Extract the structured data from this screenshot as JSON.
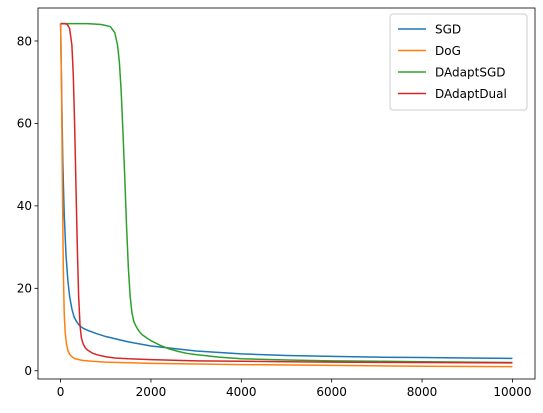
{
  "chart_data": {
    "type": "line",
    "title": "",
    "xlabel": "",
    "ylabel": "",
    "xlim": [
      -500,
      10500
    ],
    "ylim": [
      -2,
      88
    ],
    "xticks": [
      0,
      2000,
      4000,
      6000,
      8000,
      10000
    ],
    "yticks": [
      0,
      20,
      40,
      60,
      80
    ],
    "grid": false,
    "legend_position": "top-right",
    "series": [
      {
        "name": "SGD",
        "color": "#1f77b4",
        "x": [
          0,
          20,
          50,
          80,
          120,
          160,
          200,
          250,
          300,
          350,
          400,
          450,
          500,
          600,
          800,
          1000,
          1500,
          2000,
          3000,
          4000,
          5000,
          6000,
          7000,
          8000,
          9000,
          10000
        ],
        "y": [
          84.2,
          70,
          50,
          38,
          28,
          22,
          18,
          15,
          13,
          12,
          11.2,
          10.7,
          10.3,
          9.8,
          9.0,
          8.3,
          7.0,
          6.0,
          4.8,
          4.1,
          3.7,
          3.5,
          3.3,
          3.2,
          3.1,
          3.0
        ]
      },
      {
        "name": "DoG",
        "color": "#ff7f0e",
        "x": [
          0,
          20,
          40,
          60,
          80,
          100,
          130,
          160,
          200,
          250,
          300,
          400,
          500,
          700,
          1000,
          2000,
          4000,
          6000,
          8000,
          10000
        ],
        "y": [
          84.2,
          70,
          45,
          25,
          14,
          9.5,
          6.5,
          5,
          4,
          3.4,
          3.0,
          2.7,
          2.5,
          2.3,
          2.1,
          1.8,
          1.5,
          1.3,
          1.1,
          1.0
        ]
      },
      {
        "name": "DAdaptSGD",
        "color": "#2ca02c",
        "x": [
          0,
          300,
          600,
          900,
          1100,
          1200,
          1260,
          1300,
          1340,
          1380,
          1420,
          1460,
          1500,
          1540,
          1580,
          1620,
          1660,
          1700,
          1750,
          1800,
          1900,
          2000,
          2200,
          2400,
          2600,
          2800,
          3000,
          3500,
          4000,
          5000,
          6000,
          7000,
          8000,
          9000,
          10000
        ],
        "y": [
          84.2,
          84.2,
          84.2,
          84.0,
          83.5,
          82,
          79,
          75,
          68,
          58,
          47,
          35,
          25,
          18,
          14,
          12,
          11,
          10.2,
          9.4,
          8.8,
          8.0,
          7.3,
          6.2,
          5.3,
          4.7,
          4.2,
          3.9,
          3.3,
          2.9,
          2.6,
          2.4,
          2.3,
          2.2,
          2.1,
          2.0
        ]
      },
      {
        "name": "DAdaptDual",
        "color": "#d62728",
        "x": [
          0,
          100,
          150,
          200,
          250,
          280,
          310,
          340,
          370,
          400,
          430,
          460,
          500,
          550,
          600,
          700,
          800,
          1000,
          1200,
          1500,
          2000,
          3000,
          4000,
          5000,
          6000,
          8000,
          10000
        ],
        "y": [
          84.2,
          84.2,
          84.0,
          83,
          79,
          72,
          60,
          45,
          30,
          18,
          11,
          8,
          6.5,
          5.5,
          5.0,
          4.3,
          3.9,
          3.4,
          3.1,
          2.9,
          2.7,
          2.4,
          2.3,
          2.2,
          2.1,
          2.0,
          1.9
        ]
      }
    ]
  }
}
